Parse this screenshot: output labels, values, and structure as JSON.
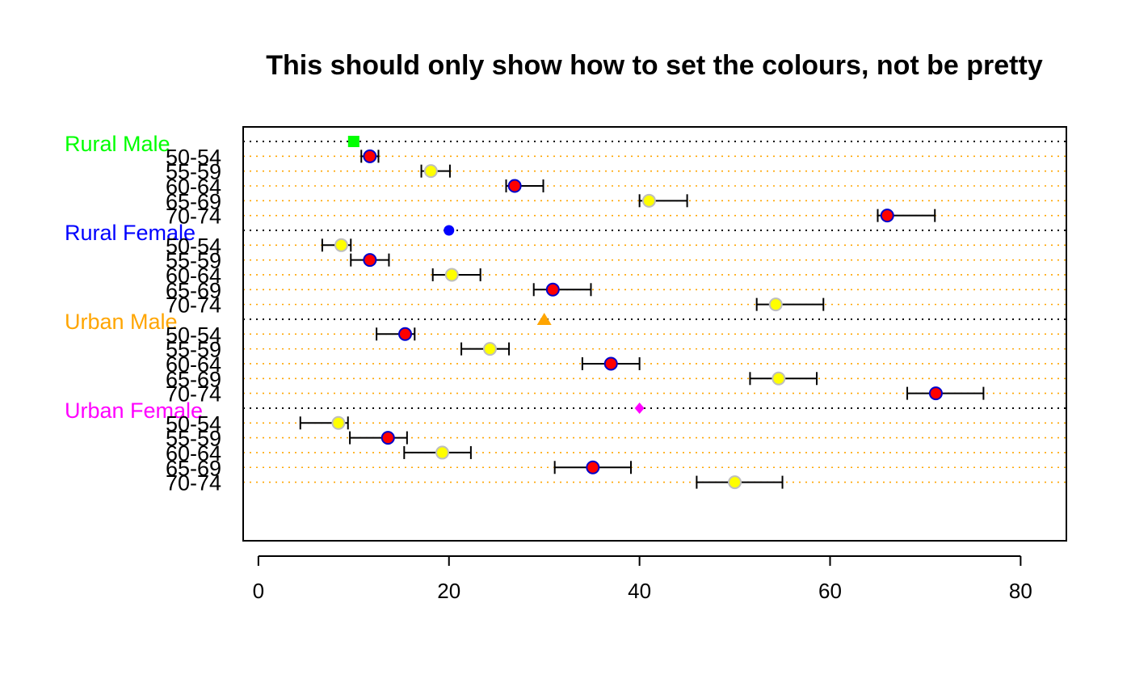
{
  "chart_data": {
    "type": "scatter",
    "subtype": "dotchart-with-error-bars",
    "title": "This should only show how to set the colours, not be pretty",
    "xlabel": "",
    "ylabel": "",
    "xlim": [
      -1.6,
      84.8
    ],
    "x_ticks": [
      0,
      20,
      40,
      60,
      80
    ],
    "x_tick_labels": [
      "0",
      "20",
      "40",
      "60",
      "80"
    ],
    "grid": "dotted horizontal lines per row",
    "group_line_color": "#000000",
    "row_line_color": "#FFA500",
    "error_bar_color": "#000000",
    "point_fill_colors": [
      "#FF0000",
      "#FFFF00"
    ],
    "point_border_colors": [
      "#0000CC",
      "#BEBEBE"
    ],
    "groups": [
      {
        "label": "Rural Male",
        "label_color": "#00FF00",
        "marker": "square",
        "marker_color": "#00FF00",
        "marker_value": 10,
        "rows": [
          {
            "label": "50-54",
            "value": 11.7,
            "lower": 10.8,
            "upper": 12.6
          },
          {
            "label": "55-59",
            "value": 18.1,
            "lower": 17.1,
            "upper": 20.1
          },
          {
            "label": "60-64",
            "value": 26.9,
            "lower": 26.0,
            "upper": 29.9
          },
          {
            "label": "65-69",
            "value": 41.0,
            "lower": 40.0,
            "upper": 45.0
          },
          {
            "label": "70-74",
            "value": 66.0,
            "lower": 65.0,
            "upper": 71.0
          }
        ]
      },
      {
        "label": "Rural Female",
        "label_color": "#0000FF",
        "marker": "circle",
        "marker_color": "#0000FF",
        "marker_value": 20,
        "rows": [
          {
            "label": "50-54",
            "value": 8.7,
            "lower": 6.7,
            "upper": 9.7
          },
          {
            "label": "55-59",
            "value": 11.7,
            "lower": 9.7,
            "upper": 13.7
          },
          {
            "label": "60-64",
            "value": 20.3,
            "lower": 18.3,
            "upper": 23.3
          },
          {
            "label": "65-69",
            "value": 30.9,
            "lower": 28.9,
            "upper": 34.9
          },
          {
            "label": "70-74",
            "value": 54.3,
            "lower": 52.3,
            "upper": 59.3
          }
        ]
      },
      {
        "label": "Urban Male",
        "label_color": "#FFA500",
        "marker": "triangle",
        "marker_color": "#FFA500",
        "marker_value": 30,
        "rows": [
          {
            "label": "50-54",
            "value": 15.4,
            "lower": 12.4,
            "upper": 16.4
          },
          {
            "label": "55-59",
            "value": 24.3,
            "lower": 21.3,
            "upper": 26.3
          },
          {
            "label": "60-64",
            "value": 37.0,
            "lower": 34.0,
            "upper": 40.0
          },
          {
            "label": "65-69",
            "value": 54.6,
            "lower": 51.6,
            "upper": 58.6
          },
          {
            "label": "70-74",
            "value": 71.1,
            "lower": 68.1,
            "upper": 76.1
          }
        ]
      },
      {
        "label": "Urban Female",
        "label_color": "#FF00FF",
        "marker": "diamond",
        "marker_color": "#FF00FF",
        "marker_value": 40,
        "rows": [
          {
            "label": "50-54",
            "value": 8.4,
            "lower": 4.4,
            "upper": 9.4
          },
          {
            "label": "55-59",
            "value": 13.6,
            "lower": 9.6,
            "upper": 15.6
          },
          {
            "label": "60-64",
            "value": 19.3,
            "lower": 15.3,
            "upper": 22.3
          },
          {
            "label": "65-69",
            "value": 35.1,
            "lower": 31.1,
            "upper": 39.1
          },
          {
            "label": "70-74",
            "value": 50.0,
            "lower": 46.0,
            "upper": 55.0
          }
        ]
      }
    ]
  }
}
